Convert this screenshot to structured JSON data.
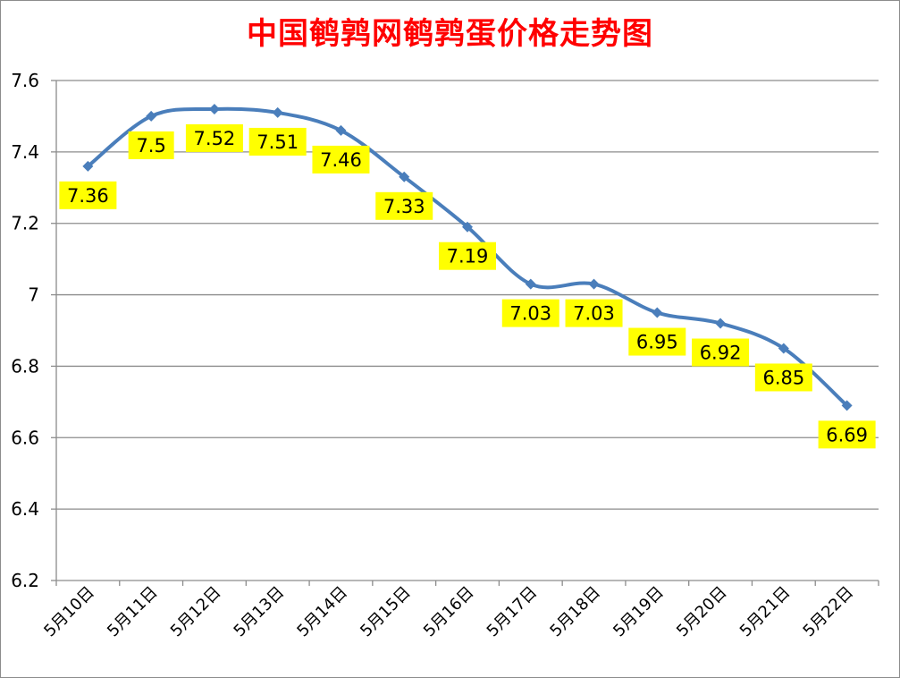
{
  "chart_data": {
    "type": "line",
    "title": "中国鹌鹑网鹌鹑蛋价格走势图",
    "xlabel": "",
    "ylabel": "",
    "categories": [
      "5月10日",
      "5月11日",
      "5月12日",
      "5月13日",
      "5月14日",
      "5月15日",
      "5月16日",
      "5月17日",
      "5月18日",
      "5月19日",
      "5月20日",
      "5月21日",
      "5月22日"
    ],
    "series": [
      {
        "values": [
          7.36,
          7.5,
          7.52,
          7.51,
          7.46,
          7.33,
          7.19,
          7.03,
          7.03,
          6.95,
          6.92,
          6.85,
          6.69
        ]
      }
    ],
    "data_labels": [
      "7.36",
      "7.5",
      "7.52",
      "7.51",
      "7.46",
      "7.33",
      "7.19",
      "7.03",
      "7.03",
      "6.95",
      "6.92",
      "6.85",
      "6.69"
    ],
    "ylim": [
      6.2,
      7.6
    ],
    "yticks": [
      6.2,
      6.4,
      6.6,
      6.8,
      7,
      7.2,
      7.4,
      7.6
    ],
    "ytick_labels": [
      "6.2",
      "6.4",
      "6.6",
      "6.8",
      "7",
      "7.2",
      "7.4",
      "7.6"
    ],
    "grid": true,
    "line_color": "#4a7ebb",
    "label_bg_color": "#ffff00",
    "title_color": "#ff0000",
    "marker": "diamond"
  }
}
